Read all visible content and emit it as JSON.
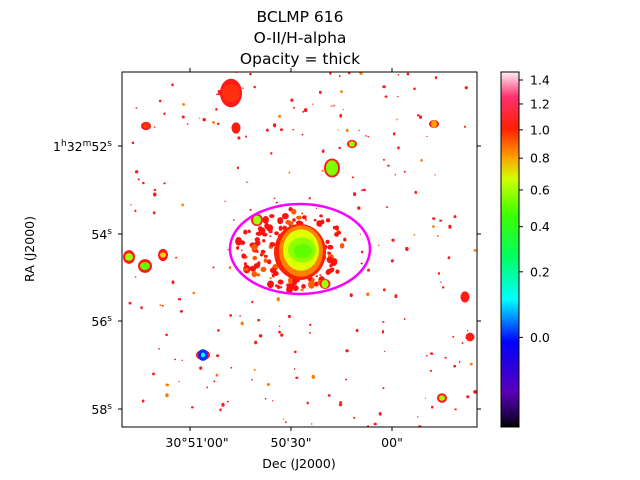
{
  "chart_data": {
    "type": "heatmap",
    "title_lines": [
      "BCLMP 616",
      "O-II/H-alpha",
      "Opacity = thick"
    ],
    "xlabel": "Dec (J2000)",
    "ylabel": "RA (J2000)",
    "x_ticks": [
      "30°51'00\"",
      "50'30\"",
      "00\""
    ],
    "y_ticks": [
      {
        "prefix": "1",
        "h": "h",
        "mid": "32",
        "m": "m",
        "sec": "52",
        "s": "s"
      },
      {
        "prefix": "",
        "h": "",
        "mid": "",
        "m": "",
        "sec": "54",
        "s": "s"
      },
      {
        "prefix": "",
        "h": "",
        "mid": "",
        "m": "",
        "sec": "56",
        "s": "s"
      },
      {
        "prefix": "",
        "h": "",
        "mid": "",
        "m": "",
        "sec": "58",
        "s": "s"
      }
    ],
    "colorbar": {
      "colormap": "gist_ncar-like",
      "range": [
        -0.1,
        1.47
      ],
      "scale": "sqrt-stretch",
      "ticks": [
        {
          "value": 0.0,
          "label": "0.0"
        },
        {
          "value": 0.2,
          "label": "0.2"
        },
        {
          "value": 0.4,
          "label": "0.4"
        },
        {
          "value": 0.6,
          "label": "0.6"
        },
        {
          "value": 0.8,
          "label": "0.8"
        },
        {
          "value": 1.0,
          "label": "1.0"
        },
        {
          "value": 1.2,
          "label": "1.2"
        },
        {
          "value": 1.4,
          "label": "1.4"
        }
      ]
    },
    "aperture": {
      "shape": "ellipse",
      "color": "#ff00ff"
    },
    "notable_features": [
      {
        "name": "central-knot",
        "ratio_range": [
          0.4,
          1.0
        ]
      },
      {
        "name": "compact-source-blue",
        "ratio_range": [
          0.2,
          1.0
        ]
      }
    ]
  }
}
